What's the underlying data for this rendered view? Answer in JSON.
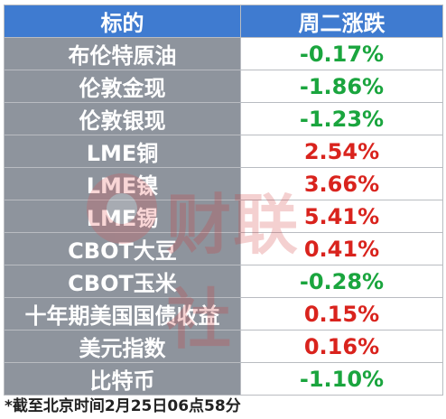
{
  "table": {
    "headers": {
      "name": "标的",
      "change": "周二涨跌"
    },
    "rows": [
      {
        "name": "布伦特原油",
        "change": "-0.17%",
        "dir": "down"
      },
      {
        "name": "伦敦金现",
        "change": "-1.86%",
        "dir": "down"
      },
      {
        "name": "伦敦银现",
        "change": "-1.23%",
        "dir": "down"
      },
      {
        "name": "LME铜",
        "change": "2.54%",
        "dir": "up"
      },
      {
        "name": "LME镍",
        "change": "3.66%",
        "dir": "up"
      },
      {
        "name": "LME锡",
        "change": "5.41%",
        "dir": "up"
      },
      {
        "name": "CBOT大豆",
        "change": "0.41%",
        "dir": "up"
      },
      {
        "name": "CBOT玉米",
        "change": "-0.28%",
        "dir": "down"
      },
      {
        "name": "十年期美国国债收益",
        "change": "0.15%",
        "dir": "up"
      },
      {
        "name": "美元指数",
        "change": "0.16%",
        "dir": "up"
      },
      {
        "name": "比特币",
        "change": "-1.10%",
        "dir": "down"
      }
    ]
  },
  "footnote": "*截至北京时间2月25日06点58分",
  "watermark": {
    "text": "财联社",
    "logo_icon": "cls-logo-icon"
  },
  "colors": {
    "header_bg": "#3f7bd0",
    "name_cell_bg": "#8e949d",
    "up": "#d9231d",
    "down": "#1aa53e"
  }
}
